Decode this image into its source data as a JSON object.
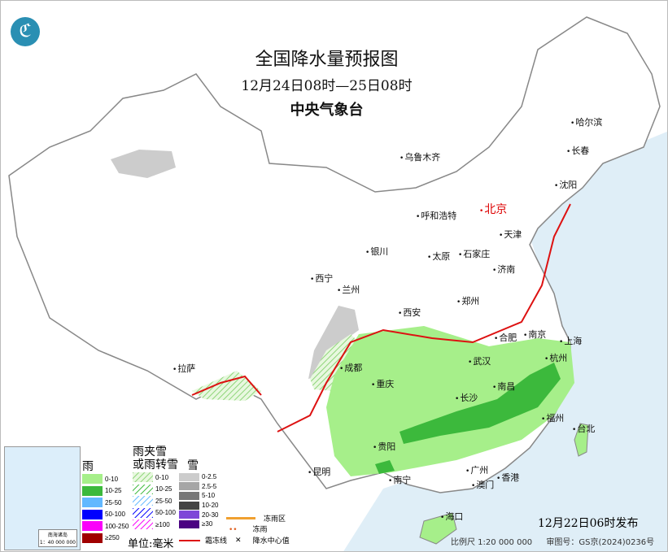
{
  "title": "全国降水量预报图",
  "period": "12月24日08时—25日08时",
  "agency": "中央气象台",
  "issued": "12月22日06时发布",
  "scale": "比例尺 1:20 000 000",
  "map_number": "审图号：GS京(2024)0236号",
  "cities": {
    "urumqi": "乌鲁木齐",
    "harbin": "哈尔滨",
    "changchun": "长春",
    "shenyang": "沈阳",
    "hohhot": "呼和浩特",
    "beijing": "北京",
    "tianjin": "天津",
    "shijiazhuang": "石家庄",
    "taiyuan": "太原",
    "yinchuan": "银川",
    "xining": "西宁",
    "lanzhou": "兰州",
    "jinan": "济南",
    "zhengzhou": "郑州",
    "xian": "西安",
    "hefei": "合肥",
    "nanjing": "南京",
    "shanghai": "上海",
    "wuhan": "武汉",
    "hangzhou": "杭州",
    "chengdu": "成都",
    "chongqing": "重庆",
    "lhasa": "拉萨",
    "changsha": "长沙",
    "nanchang": "南昌",
    "fuzhou": "福州",
    "taipei": "台北",
    "guiyang": "贵阳",
    "kunming": "昆明",
    "nanning": "南宁",
    "guangzhou": "广州",
    "macau": "澳门",
    "hongkong": "香港",
    "haikou": "海口"
  },
  "inset": {
    "caption": "南海诸岛",
    "scale": "1：40 000 000"
  },
  "legend": {
    "rain": {
      "title": "雨",
      "items": [
        {
          "label": "0-10",
          "color": "#a6ef8a"
        },
        {
          "label": "10-25",
          "color": "#3cb93c"
        },
        {
          "label": "25-50",
          "color": "#62b8ff"
        },
        {
          "label": "50-100",
          "color": "#0000fe"
        },
        {
          "label": "100-250",
          "color": "#fa00fa"
        },
        {
          "label": "≥250",
          "color": "#800000"
        }
      ]
    },
    "sleet": {
      "title1": "雨夹雪",
      "title2": "或雨转雪",
      "items": [
        {
          "label": "0-10",
          "color": "#a6ef8a"
        },
        {
          "label": "10-25",
          "color": "#3cb93c"
        },
        {
          "label": "25-50",
          "color": "#62b8ff"
        },
        {
          "label": "50-100",
          "color": "#0000fe"
        },
        {
          "label": "≥100",
          "color": "#fa00fa"
        }
      ]
    },
    "snow": {
      "title": "雪",
      "items": [
        {
          "label": "0-2.5",
          "color": "#cccccc"
        },
        {
          "label": "2.5-5",
          "color": "#a6a6a6"
        },
        {
          "label": "5-10",
          "color": "#777777"
        },
        {
          "label": "10-20",
          "color": "#444444"
        },
        {
          "label": "20-30",
          "color": "#7e47d8"
        },
        {
          "label": "≥30",
          "color": "#4b0082"
        }
      ]
    },
    "unit": "单位:毫米",
    "freezing_rain_area": "冻雨区",
    "freezing_rain": "冻雨",
    "frost_line": "霜冻线",
    "center_value": "降水中心值"
  }
}
